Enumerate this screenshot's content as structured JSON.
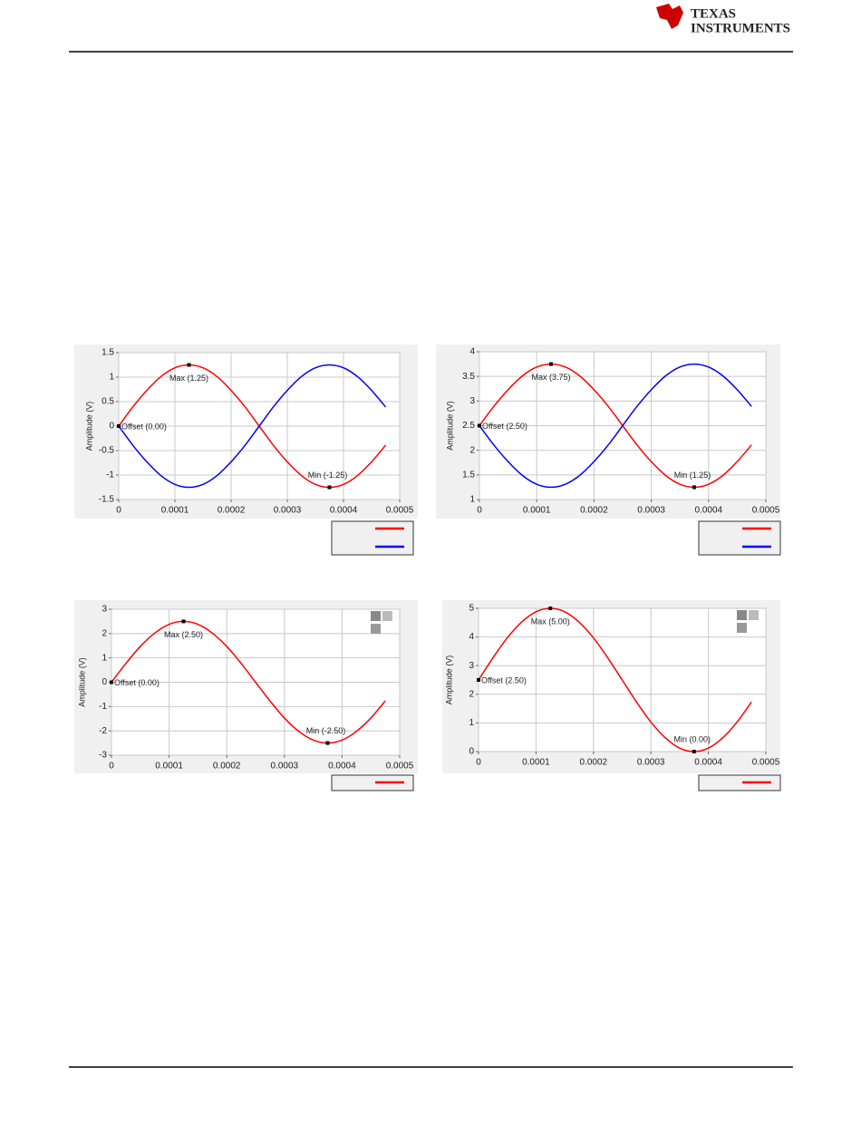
{
  "header": {
    "logo_line1": "TEXAS",
    "logo_line2": "INSTRUMENTS"
  },
  "chart_data": [
    {
      "type": "line",
      "y_label": "Amplitude (V)",
      "x": [
        0,
        2.5e-05,
        5e-05,
        7.5e-05,
        0.0001,
        0.000125,
        0.00015,
        0.000175,
        0.0002,
        0.000225,
        0.00025,
        0.000275,
        0.0003,
        0.000325,
        0.00035,
        0.000375,
        0.0004,
        0.000425,
        0.00045,
        0.000475
      ],
      "series": [
        {
          "color": "#ff0000",
          "values": [
            0,
            0.39,
            0.73,
            1.01,
            1.19,
            1.25,
            1.19,
            1.01,
            0.73,
            0.39,
            0,
            -0.39,
            -0.73,
            -1.01,
            -1.19,
            -1.25,
            -1.19,
            -1.01,
            -0.73,
            -0.39
          ]
        },
        {
          "color": "#0000ff",
          "values": [
            0,
            -0.39,
            -0.73,
            -1.01,
            -1.19,
            -1.25,
            -1.19,
            -1.01,
            -0.73,
            -0.39,
            0,
            0.39,
            0.73,
            1.01,
            1.19,
            1.25,
            1.19,
            1.01,
            0.73,
            0.39
          ]
        }
      ],
      "annotations": [
        {
          "label": "Offset (0.00)",
          "x": 0,
          "y": 0
        },
        {
          "label": "Max (1.25)",
          "x": 0.000125,
          "y": 1.25
        },
        {
          "label": "Min (-1.25)",
          "x": 0.000375,
          "y": -1.25
        }
      ],
      "xlim": [
        0,
        0.0005
      ],
      "xticks": [
        0,
        0.0001,
        0.0002,
        0.0003,
        0.0004,
        0.0005
      ],
      "ylim": [
        -1.5,
        1.5
      ],
      "yticks": [
        -1.5,
        -1,
        -0.5,
        0,
        0.5,
        1,
        1.5
      ],
      "grid": true
    },
    {
      "type": "line",
      "y_label": "Amplitude (V)",
      "x": [
        0,
        2.5e-05,
        5e-05,
        7.5e-05,
        0.0001,
        0.000125,
        0.00015,
        0.000175,
        0.0002,
        0.000225,
        0.00025,
        0.000275,
        0.0003,
        0.000325,
        0.00035,
        0.000375,
        0.0004,
        0.000425,
        0.00045,
        0.000475
      ],
      "series": [
        {
          "color": "#ff0000",
          "values": [
            2.5,
            2.89,
            3.23,
            3.51,
            3.69,
            3.75,
            3.69,
            3.51,
            3.23,
            2.89,
            2.5,
            2.11,
            1.77,
            1.49,
            1.31,
            1.25,
            1.31,
            1.49,
            1.77,
            2.11
          ]
        },
        {
          "color": "#0000ff",
          "values": [
            2.5,
            2.11,
            1.77,
            1.49,
            1.31,
            1.25,
            1.31,
            1.49,
            1.77,
            2.11,
            2.5,
            2.89,
            3.23,
            3.51,
            3.69,
            3.75,
            3.69,
            3.51,
            3.23,
            2.89
          ]
        }
      ],
      "annotations": [
        {
          "label": "Offset (2.50)",
          "x": 0,
          "y": 2.5
        },
        {
          "label": "Max (3.75)",
          "x": 0.000125,
          "y": 3.75
        },
        {
          "label": "Min (1.25)",
          "x": 0.000375,
          "y": 1.25
        }
      ],
      "xlim": [
        0,
        0.0005
      ],
      "xticks": [
        0,
        0.0001,
        0.0002,
        0.0003,
        0.0004,
        0.0005
      ],
      "ylim": [
        1,
        4
      ],
      "yticks": [
        1,
        1.5,
        2,
        2.5,
        3,
        3.5,
        4
      ],
      "grid": true
    },
    {
      "type": "line",
      "y_label": "Amplitude (V)",
      "x": [
        0,
        2.5e-05,
        5e-05,
        7.5e-05,
        0.0001,
        0.000125,
        0.00015,
        0.000175,
        0.0002,
        0.000225,
        0.00025,
        0.000275,
        0.0003,
        0.000325,
        0.00035,
        0.000375,
        0.0004,
        0.000425,
        0.00045,
        0.000475
      ],
      "series": [
        {
          "color": "#ff0000",
          "values": [
            0,
            0.77,
            1.47,
            2.02,
            2.38,
            2.5,
            2.38,
            2.02,
            1.47,
            0.77,
            0,
            -0.77,
            -1.47,
            -2.02,
            -2.38,
            -2.5,
            -2.38,
            -2.02,
            -1.47,
            -0.77
          ]
        }
      ],
      "annotations": [
        {
          "label": "Offset (0.00)",
          "x": 0,
          "y": 0
        },
        {
          "label": "Max (2.50)",
          "x": 0.000125,
          "y": 2.5
        },
        {
          "label": "Min (-2.50)",
          "x": 0.000375,
          "y": -2.5
        }
      ],
      "xlim": [
        0,
        0.0005
      ],
      "xticks": [
        0,
        0.0001,
        0.0002,
        0.0003,
        0.0004,
        0.0005
      ],
      "ylim": [
        -3,
        3
      ],
      "yticks": [
        -3,
        -2,
        -1,
        0,
        1,
        2,
        3
      ],
      "grid": true
    },
    {
      "type": "line",
      "y_label": "Amplitude (V)",
      "x": [
        0,
        2.5e-05,
        5e-05,
        7.5e-05,
        0.0001,
        0.000125,
        0.00015,
        0.000175,
        0.0002,
        0.000225,
        0.00025,
        0.000275,
        0.0003,
        0.000325,
        0.00035,
        0.000375,
        0.0004,
        0.000425,
        0.00045,
        0.000475
      ],
      "series": [
        {
          "color": "#ff0000",
          "values": [
            2.5,
            3.27,
            3.97,
            4.52,
            4.88,
            5,
            4.88,
            4.52,
            3.97,
            3.27,
            2.5,
            1.73,
            1.03,
            0.48,
            0.12,
            0,
            0.12,
            0.48,
            1.03,
            1.73
          ]
        }
      ],
      "annotations": [
        {
          "label": "Offset (2.50)",
          "x": 0,
          "y": 2.5
        },
        {
          "label": "Max (5.00)",
          "x": 0.000125,
          "y": 5
        },
        {
          "label": "Min (0.00)",
          "x": 0.000375,
          "y": 0
        }
      ],
      "xlim": [
        0,
        0.0005
      ],
      "xticks": [
        0,
        0.0001,
        0.0002,
        0.0003,
        0.0004,
        0.0005
      ],
      "ylim": [
        0,
        5
      ],
      "yticks": [
        0,
        1,
        2,
        3,
        4,
        5
      ],
      "grid": true
    }
  ]
}
